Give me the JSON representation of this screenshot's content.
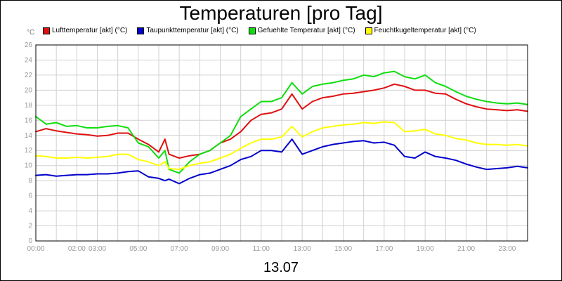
{
  "title": "Temperaturen [pro Tag]",
  "y_unit": "°C",
  "footer_label": "13.07",
  "chart_data": {
    "type": "line",
    "title": "Temperaturen [pro Tag]",
    "xlabel": "13.07",
    "ylabel": "°C",
    "x_range": [
      0,
      24
    ],
    "ylim": [
      0,
      26
    ],
    "y_ticks": [
      0,
      2,
      4,
      6,
      8,
      10,
      12,
      14,
      16,
      18,
      20,
      22,
      24,
      26
    ],
    "x_tick_labels": [
      "00:00",
      "02:00",
      "03:00",
      "05:00",
      "07:00",
      "09:00",
      "11:00",
      "13:00",
      "15:00",
      "17:00",
      "19:00",
      "21:00",
      "23:00"
    ],
    "x_tick_hours": [
      0,
      2,
      3,
      5,
      7,
      9,
      11,
      13,
      15,
      17,
      19,
      21,
      23
    ],
    "grid": true,
    "legend_position": "top",
    "series": [
      {
        "name": "Lufttemperatur [akt] (°C)",
        "color": "#e01010",
        "x": [
          0,
          0.5,
          1,
          1.5,
          2,
          2.5,
          3,
          3.5,
          4,
          4.5,
          5,
          5.5,
          6,
          6.3,
          6.5,
          7,
          7.5,
          8,
          8.5,
          9,
          9.5,
          10,
          10.5,
          11,
          11.5,
          12,
          12.5,
          13,
          13.5,
          14,
          14.5,
          15,
          15.5,
          16,
          16.5,
          17,
          17.5,
          18,
          18.5,
          19,
          19.5,
          20,
          20.5,
          21,
          21.5,
          22,
          22.5,
          23,
          23.5,
          24
        ],
        "values": [
          14.5,
          14.9,
          14.6,
          14.4,
          14.2,
          14.1,
          13.9,
          14.0,
          14.3,
          14.3,
          13.5,
          12.8,
          11.8,
          13.5,
          11.5,
          11.0,
          11.3,
          11.5,
          12.0,
          13.0,
          13.5,
          14.5,
          16.0,
          16.8,
          17.0,
          17.5,
          19.5,
          17.5,
          18.5,
          19.0,
          19.2,
          19.5,
          19.6,
          19.8,
          20.0,
          20.3,
          20.8,
          20.5,
          20.0,
          20.0,
          19.6,
          19.5,
          18.8,
          18.2,
          17.8,
          17.5,
          17.4,
          17.3,
          17.4,
          17.2
        ]
      },
      {
        "name": "Taupunkttemperatur [akt] (°C)",
        "color": "#0000cc",
        "x": [
          0,
          0.5,
          1,
          1.5,
          2,
          2.5,
          3,
          3.5,
          4,
          4.5,
          5,
          5.5,
          6,
          6.3,
          6.5,
          7,
          7.5,
          8,
          8.5,
          9,
          9.5,
          10,
          10.5,
          11,
          11.5,
          12,
          12.5,
          13,
          13.5,
          14,
          14.5,
          15,
          15.5,
          16,
          16.5,
          17,
          17.5,
          18,
          18.5,
          19,
          19.5,
          20,
          20.5,
          21,
          21.5,
          22,
          22.5,
          23,
          23.5,
          24
        ],
        "values": [
          8.7,
          8.8,
          8.6,
          8.7,
          8.8,
          8.8,
          8.9,
          8.9,
          9.0,
          9.2,
          9.3,
          8.5,
          8.3,
          8.0,
          8.2,
          7.6,
          8.3,
          8.8,
          9.0,
          9.5,
          10.0,
          10.8,
          11.2,
          12.0,
          12.0,
          11.8,
          13.5,
          11.5,
          12.0,
          12.5,
          12.8,
          13.0,
          13.2,
          13.3,
          13.0,
          13.1,
          12.7,
          11.2,
          11.0,
          11.8,
          11.2,
          11.0,
          10.7,
          10.2,
          9.8,
          9.5,
          9.6,
          9.7,
          9.9,
          9.7
        ]
      },
      {
        "name": "Gefuehlte Temperatur [akt] (°C)",
        "color": "#10dd10",
        "x": [
          0,
          0.5,
          1,
          1.5,
          2,
          2.5,
          3,
          3.5,
          4,
          4.5,
          5,
          5.5,
          6,
          6.3,
          6.5,
          7,
          7.5,
          8,
          8.5,
          9,
          9.5,
          10,
          10.5,
          11,
          11.5,
          12,
          12.5,
          13,
          13.5,
          14,
          14.5,
          15,
          15.5,
          16,
          16.5,
          17,
          17.5,
          18,
          18.5,
          19,
          19.5,
          20,
          20.5,
          21,
          21.5,
          22,
          22.5,
          23,
          23.5,
          24
        ],
        "values": [
          16.5,
          15.5,
          15.7,
          15.2,
          15.3,
          15.0,
          15.0,
          15.2,
          15.3,
          15.0,
          13.0,
          12.5,
          11.0,
          12.0,
          9.5,
          9.0,
          10.5,
          11.5,
          12.0,
          13.0,
          14.0,
          16.5,
          17.5,
          18.5,
          18.5,
          19.0,
          21.0,
          19.5,
          20.5,
          20.8,
          21.0,
          21.3,
          21.5,
          22.0,
          21.8,
          22.3,
          22.5,
          21.8,
          21.5,
          22.0,
          21.0,
          20.5,
          19.8,
          19.2,
          18.8,
          18.5,
          18.3,
          18.2,
          18.3,
          18.1
        ]
      },
      {
        "name": "Feuchtkugeltemperatur [akt] (°C)",
        "color": "#ffff00",
        "x": [
          0,
          0.5,
          1,
          1.5,
          2,
          2.5,
          3,
          3.5,
          4,
          4.5,
          5,
          5.5,
          6,
          6.3,
          6.5,
          7,
          7.5,
          8,
          8.5,
          9,
          9.5,
          10,
          10.5,
          11,
          11.5,
          12,
          12.5,
          13,
          13.5,
          14,
          14.5,
          15,
          15.5,
          16,
          16.5,
          17,
          17.5,
          18,
          18.5,
          19,
          19.5,
          20,
          20.5,
          21,
          21.5,
          22,
          22.5,
          23,
          23.5,
          24
        ],
        "values": [
          11.3,
          11.2,
          11.0,
          11.0,
          11.1,
          11.0,
          11.1,
          11.2,
          11.5,
          11.5,
          10.8,
          10.5,
          10.0,
          10.5,
          9.6,
          9.5,
          10.0,
          10.3,
          10.5,
          11.0,
          11.5,
          12.3,
          13.0,
          13.5,
          13.5,
          13.8,
          15.2,
          13.8,
          14.5,
          15.0,
          15.2,
          15.4,
          15.5,
          15.7,
          15.6,
          15.8,
          15.7,
          14.5,
          14.6,
          14.8,
          14.2,
          14.0,
          13.6,
          13.4,
          13.0,
          12.8,
          12.8,
          12.7,
          12.8,
          12.6
        ]
      }
    ]
  }
}
